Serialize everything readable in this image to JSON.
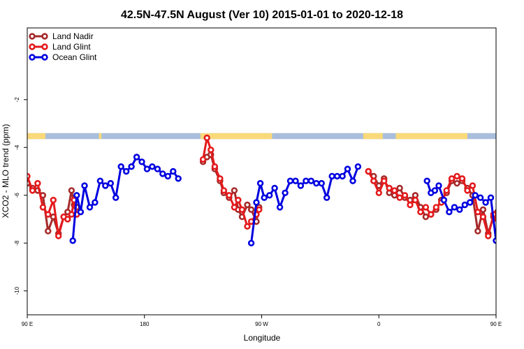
{
  "chart_data": {
    "type": "line",
    "title": "42.5N-47.5N August (Ver 10)   2015-01-01 to 2020-12-18",
    "xlabel": "Longitude",
    "ylabel": "XCO2 - MLO trend (ppm)",
    "xlim": [
      90,
      450
    ],
    "ylim": [
      -11,
      1
    ],
    "xticks": [
      {
        "value": 90,
        "label": "90 E"
      },
      {
        "value": 180,
        "label": "180"
      },
      {
        "value": 270,
        "label": "90 W"
      },
      {
        "value": 360,
        "label": "0"
      },
      {
        "value": 450,
        "label": "90 E"
      },
      {
        "value": 540,
        "label": "180"
      }
    ],
    "yticks": [
      {
        "value": -10,
        "label": "-10"
      },
      {
        "value": -8,
        "label": "-8"
      },
      {
        "value": -6,
        "label": "-6"
      },
      {
        "value": -4,
        "label": "-4"
      },
      {
        "value": -2,
        "label": "-2"
      }
    ],
    "grid": false,
    "legend_position": "top-left",
    "land_band": {
      "y_range": [
        -3.4,
        -3.65
      ],
      "land_color": "#f9d97a",
      "ocean_color": "#a9bedc",
      "land_segments": [
        [
          90,
          104
        ],
        [
          145,
          147
        ],
        [
          223,
          278
        ],
        [
          348,
          363
        ],
        [
          373,
          428
        ],
        [
          510,
          556
        ]
      ]
    },
    "series": [
      {
        "name": "Land Nadir",
        "color": "#a52a2a",
        "segments": [
          [
            [
              90,
              -5.5
            ],
            [
              94,
              -5.7
            ],
            [
              98,
              -5.8
            ],
            [
              102,
              -6.0
            ],
            [
              106,
              -7.5
            ],
            [
              110,
              -6.9
            ],
            [
              114,
              -7.6
            ],
            [
              118,
              -6.9
            ],
            [
              121,
              -6.7
            ],
            [
              124,
              -5.8
            ],
            [
              126,
              -6.4
            ],
            [
              128,
              -6.5
            ]
          ],
          [
            [
              225,
              -4.6
            ],
            [
              228,
              -4.4
            ],
            [
              231,
              -4.3
            ],
            [
              234,
              -4.9
            ],
            [
              238,
              -5.4
            ],
            [
              241,
              -5.9
            ],
            [
              245,
              -6.1
            ],
            [
              249,
              -5.8
            ],
            [
              252,
              -6.6
            ],
            [
              255,
              -6.9
            ],
            [
              259,
              -6.4
            ],
            [
              262,
              -6.6
            ],
            [
              266,
              -7.1
            ],
            [
              268,
              -6.5
            ]
          ],
          [
            [
              352,
              -5.0
            ],
            [
              356,
              -5.2
            ],
            [
              360,
              -5.6
            ],
            [
              364,
              -5.3
            ],
            [
              368,
              -5.9
            ],
            [
              372,
              -6.0
            ],
            [
              376,
              -5.7
            ],
            [
              380,
              -6.1
            ],
            [
              384,
              -6.2
            ],
            [
              388,
              -6.0
            ],
            [
              392,
              -6.5
            ],
            [
              396,
              -6.9
            ],
            [
              400,
              -6.8
            ],
            [
              404,
              -6.6
            ],
            [
              408,
              -6.2
            ],
            [
              412,
              -5.9
            ],
            [
              416,
              -5.4
            ],
            [
              420,
              -5.5
            ],
            [
              424,
              -5.4
            ],
            [
              428,
              -5.7
            ],
            [
              432,
              -6.0
            ],
            [
              436,
              -7.5
            ],
            [
              440,
              -6.6
            ],
            [
              444,
              -7.6
            ],
            [
              448,
              -6.9
            ],
            [
              451,
              -6.7
            ],
            [
              454,
              -5.8
            ],
            [
              457,
              -6.4
            ],
            [
              460,
              -6.5
            ]
          ]
        ]
      },
      {
        "name": "Land Glint",
        "color": "#e41a1c",
        "segments": [
          [
            [
              90,
              -5.2
            ],
            [
              94,
              -5.8
            ],
            [
              98,
              -5.5
            ],
            [
              102,
              -6.5
            ],
            [
              106,
              -6.8
            ],
            [
              110,
              -6.2
            ],
            [
              114,
              -7.7
            ],
            [
              118,
              -6.9
            ],
            [
              121,
              -7.0
            ],
            [
              124,
              -6.8
            ],
            [
              126,
              -6.2
            ],
            [
              128,
              -6.8
            ]
          ],
          [
            [
              225,
              -4.5
            ],
            [
              228,
              -3.6
            ],
            [
              231,
              -4.1
            ],
            [
              234,
              -4.8
            ],
            [
              238,
              -5.3
            ],
            [
              241,
              -5.8
            ],
            [
              245,
              -6.0
            ],
            [
              249,
              -6.5
            ],
            [
              252,
              -6.2
            ],
            [
              255,
              -6.6
            ],
            [
              259,
              -7.3
            ],
            [
              262,
              -7.1
            ],
            [
              266,
              -6.8
            ],
            [
              268,
              -6.6
            ]
          ],
          [
            [
              352,
              -5.0
            ],
            [
              356,
              -5.4
            ],
            [
              360,
              -5.9
            ],
            [
              364,
              -5.4
            ],
            [
              368,
              -5.7
            ],
            [
              372,
              -5.8
            ],
            [
              376,
              -6.1
            ],
            [
              380,
              -6.0
            ],
            [
              384,
              -6.4
            ],
            [
              388,
              -6.2
            ],
            [
              392,
              -6.7
            ],
            [
              396,
              -6.5
            ],
            [
              400,
              -6.8
            ],
            [
              404,
              -6.5
            ],
            [
              408,
              -6.3
            ],
            [
              412,
              -5.8
            ],
            [
              416,
              -5.3
            ],
            [
              420,
              -5.2
            ],
            [
              424,
              -5.3
            ],
            [
              428,
              -5.8
            ],
            [
              432,
              -5.6
            ],
            [
              436,
              -6.7
            ],
            [
              440,
              -6.9
            ],
            [
              444,
              -7.7
            ],
            [
              448,
              -6.8
            ],
            [
              451,
              -7.0
            ],
            [
              454,
              -6.8
            ],
            [
              457,
              -6.2
            ],
            [
              460,
              -6.8
            ]
          ]
        ]
      },
      {
        "name": "Ocean Glint",
        "color": "#0000e0",
        "segments": [
          [
            [
              125,
              -7.9
            ],
            [
              128,
              -6.0
            ],
            [
              131,
              -6.7
            ],
            [
              134,
              -5.6
            ],
            [
              138,
              -6.5
            ],
            [
              142,
              -6.3
            ],
            [
              146,
              -5.4
            ],
            [
              150,
              -5.6
            ],
            [
              154,
              -5.5
            ],
            [
              158,
              -6.1
            ],
            [
              162,
              -4.8
            ],
            [
              166,
              -5.0
            ],
            [
              170,
              -4.8
            ],
            [
              174,
              -4.4
            ],
            [
              178,
              -4.6
            ],
            [
              182,
              -4.9
            ],
            [
              186,
              -4.8
            ],
            [
              190,
              -4.9
            ],
            [
              194,
              -5.1
            ],
            [
              198,
              -5.2
            ],
            [
              202,
              -5.0
            ],
            [
              206,
              -5.3
            ]
          ],
          [
            [
              262,
              -8.0
            ],
            [
              266,
              -6.3
            ],
            [
              269,
              -5.5
            ],
            [
              272,
              -6.1
            ],
            [
              276,
              -6.0
            ],
            [
              280,
              -5.7
            ],
            [
              284,
              -6.5
            ],
            [
              288,
              -5.9
            ],
            [
              292,
              -5.4
            ],
            [
              296,
              -5.4
            ],
            [
              300,
              -5.6
            ],
            [
              304,
              -5.4
            ],
            [
              308,
              -5.4
            ],
            [
              312,
              -5.5
            ],
            [
              316,
              -5.5
            ],
            [
              320,
              -6.1
            ],
            [
              324,
              -5.2
            ],
            [
              328,
              -5.2
            ],
            [
              332,
              -5.2
            ],
            [
              336,
              -4.9
            ],
            [
              340,
              -5.4
            ],
            [
              344,
              -4.8
            ]
          ],
          [
            [
              397,
              -5.4
            ],
            [
              400,
              -5.9
            ],
            [
              403,
              -5.8
            ],
            [
              406,
              -5.6
            ],
            [
              410,
              -6.2
            ],
            [
              414,
              -6.7
            ],
            [
              418,
              -6.5
            ],
            [
              422,
              -6.6
            ],
            [
              426,
              -6.4
            ],
            [
              430,
              -6.3
            ],
            [
              434,
              -6.0
            ],
            [
              438,
              -6.1
            ],
            [
              442,
              -6.3
            ],
            [
              446,
              -6.1
            ],
            [
              450,
              -7.9
            ],
            [
              453,
              -6.0
            ],
            [
              456,
              -6.7
            ],
            [
              459,
              -5.6
            ],
            [
              463,
              -6.5
            ],
            [
              467,
              -6.3
            ],
            [
              471,
              -5.4
            ],
            [
              475,
              -5.6
            ],
            [
              479,
              -5.5
            ],
            [
              483,
              -6.1
            ]
          ]
        ]
      }
    ]
  }
}
